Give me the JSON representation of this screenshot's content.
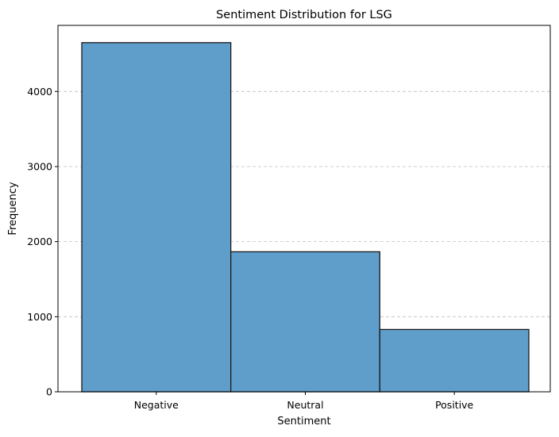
{
  "chart_data": {
    "type": "bar",
    "title": "Sentiment Distribution for LSG",
    "xlabel": "Sentiment",
    "ylabel": "Frequency",
    "categories": [
      "Negative",
      "Neutral",
      "Positive"
    ],
    "values": [
      4650,
      1865,
      830
    ],
    "ylim": [
      0,
      4880
    ],
    "yticks": [
      0,
      1000,
      2000,
      3000,
      4000
    ],
    "grid": "y-dashed",
    "legend": "none",
    "bar_color": "#5f9ecb",
    "bar_edge_color": "#1a1a1a"
  }
}
